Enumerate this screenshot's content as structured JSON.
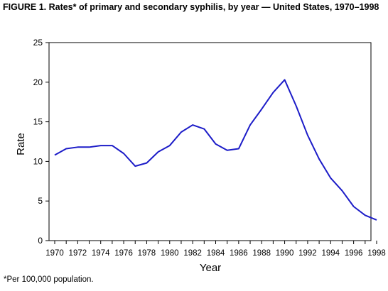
{
  "figure": {
    "title": "FIGURE 1. Rates* of primary and secondary syphilis, by year — United States, 1970–1998",
    "footnote": "*Per 100,000 population."
  },
  "colors": {
    "line": "#1c1cc8",
    "axis": "#000000",
    "background": "#ffffff"
  },
  "chart_data": {
    "type": "line",
    "title": "FIGURE 1. Rates* of primary and secondary syphilis, by year — United States, 1970–1998",
    "xlabel": "Year",
    "ylabel": "Rate",
    "xlim": [
      1970,
      1998
    ],
    "ylim": [
      0,
      25
    ],
    "grid": false,
    "legend": "none",
    "x_ticks": [
      "1970",
      "1972",
      "1974",
      "1976",
      "1978",
      "1980",
      "1982",
      "1984",
      "1986",
      "1988",
      "1990",
      "1992",
      "1994",
      "1996",
      "1998"
    ],
    "y_ticks": [
      "0",
      "5",
      "10",
      "15",
      "20",
      "25"
    ],
    "series": [
      {
        "x": [
          1970,
          1971,
          1972,
          1973,
          1974,
          1975,
          1976,
          1977,
          1978,
          1979,
          1980,
          1981,
          1982,
          1983,
          1984,
          1985,
          1986,
          1987,
          1988,
          1989,
          1990,
          1991,
          1992,
          1993,
          1994,
          1995,
          1996,
          1997,
          1998
        ],
        "y": [
          10.8,
          11.6,
          11.8,
          11.8,
          12.0,
          12.0,
          11.0,
          9.4,
          9.8,
          11.2,
          12.0,
          13.7,
          14.6,
          14.1,
          12.2,
          11.4,
          11.6,
          14.6,
          16.6,
          18.7,
          20.3,
          17.0,
          13.3,
          10.3,
          7.9,
          6.3,
          4.3,
          3.2,
          2.6
        ]
      }
    ]
  }
}
